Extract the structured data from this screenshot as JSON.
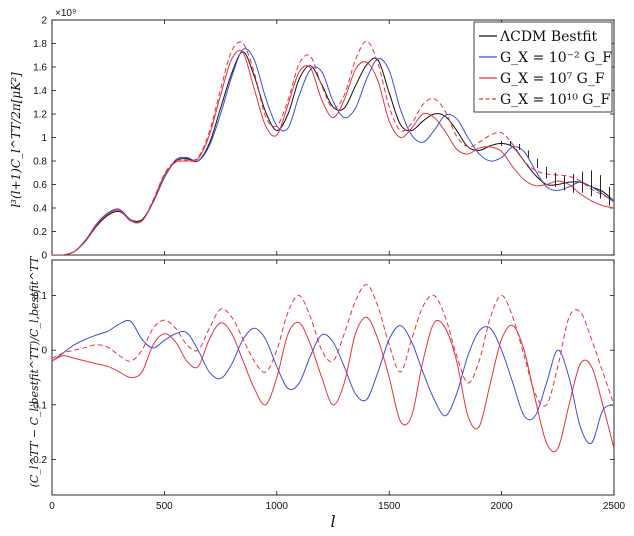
{
  "chart_data": [
    {
      "type": "line",
      "panel": "top",
      "ylabel": "l³(l+1)C_l^TT/2π[μK²]",
      "y_exponent_label": "×10⁹",
      "xlim": [
        0,
        2500
      ],
      "ylim": [
        0,
        2000000000.0
      ],
      "x_ticks": [
        0,
        500,
        1000,
        1500,
        2000,
        2500
      ],
      "y_ticks": [
        0,
        0.2,
        0.4,
        0.6,
        0.8,
        1,
        1.2,
        1.4,
        1.6,
        1.8,
        2
      ],
      "y_tick_labels": [
        "0",
        "0.2",
        "0.4",
        "0.6",
        "0.8",
        "1",
        "1.2",
        "1.4",
        "1.6",
        "1.8",
        "2"
      ],
      "legend_position": "top-right",
      "legend": [
        {
          "label": "ΛCDM Bestfit",
          "color": "#111111",
          "dash": "solid"
        },
        {
          "label": "G_X = 10⁻² G_F",
          "color": "#3a4fe0",
          "dash": "solid"
        },
        {
          "label": "G_X = 10⁷ G_F",
          "color": "#e8323c",
          "dash": "solid"
        },
        {
          "label": "G_X = 10¹⁰ G_F",
          "color": "#e8323c",
          "dash": "dashed"
        }
      ],
      "x": [
        0,
        50,
        100,
        150,
        200,
        250,
        300,
        350,
        400,
        450,
        500,
        550,
        600,
        650,
        700,
        750,
        800,
        850,
        900,
        950,
        1000,
        1050,
        1100,
        1150,
        1200,
        1250,
        1300,
        1350,
        1400,
        1450,
        1500,
        1550,
        1600,
        1650,
        1700,
        1750,
        1800,
        1850,
        1900,
        1950,
        2000,
        2050,
        2100,
        2150,
        2200,
        2250,
        2300,
        2350,
        2400,
        2450,
        2500
      ],
      "series": [
        {
          "key": "bestfit",
          "color": "#111111",
          "dash": "solid",
          "values": [
            0.0,
            0.0,
            0.03,
            0.12,
            0.25,
            0.34,
            0.37,
            0.3,
            0.3,
            0.45,
            0.66,
            0.8,
            0.82,
            0.8,
            0.95,
            1.25,
            1.55,
            1.73,
            1.52,
            1.22,
            1.06,
            1.2,
            1.5,
            1.61,
            1.45,
            1.26,
            1.25,
            1.44,
            1.62,
            1.66,
            1.38,
            1.11,
            1.06,
            1.14,
            1.2,
            1.18,
            1.06,
            0.92,
            0.89,
            0.93,
            0.95,
            0.92,
            0.8,
            0.68,
            0.6,
            0.6,
            0.62,
            0.62,
            0.58,
            0.54,
            0.46
          ]
        },
        {
          "key": "gx_1e-2",
          "color": "#3a4fe0",
          "dash": "solid",
          "values": [
            0.0,
            0.0,
            0.03,
            0.13,
            0.27,
            0.36,
            0.39,
            0.3,
            0.29,
            0.45,
            0.66,
            0.81,
            0.83,
            0.8,
            0.93,
            1.2,
            1.52,
            1.75,
            1.66,
            1.34,
            1.1,
            1.08,
            1.36,
            1.58,
            1.56,
            1.31,
            1.17,
            1.25,
            1.5,
            1.67,
            1.57,
            1.24,
            1.02,
            0.96,
            1.06,
            1.19,
            1.16,
            1.0,
            0.86,
            0.8,
            0.83,
            0.92,
            0.88,
            0.72,
            0.58,
            0.55,
            0.58,
            0.62,
            0.58,
            0.52,
            0.45
          ]
        },
        {
          "key": "gx_1e7",
          "color": "#e8323c",
          "dash": "solid",
          "values": [
            0.0,
            0.0,
            0.03,
            0.12,
            0.26,
            0.35,
            0.38,
            0.29,
            0.29,
            0.46,
            0.68,
            0.79,
            0.8,
            0.82,
            1.02,
            1.36,
            1.67,
            1.72,
            1.41,
            1.1,
            1.02,
            1.28,
            1.56,
            1.59,
            1.32,
            1.17,
            1.32,
            1.58,
            1.64,
            1.48,
            1.14,
            1.0,
            1.08,
            1.2,
            1.17,
            1.05,
            0.9,
            0.86,
            0.91,
            0.92,
            0.88,
            0.75,
            0.64,
            0.59,
            0.6,
            0.63,
            0.6,
            0.52,
            0.46,
            0.42,
            0.4
          ]
        },
        {
          "key": "gx_1e10",
          "color": "#e8323c",
          "dash": "dashed",
          "values": [
            0.0,
            0.0,
            0.03,
            0.12,
            0.26,
            0.35,
            0.38,
            0.29,
            0.29,
            0.47,
            0.69,
            0.8,
            0.81,
            0.83,
            1.05,
            1.41,
            1.74,
            1.8,
            1.55,
            1.18,
            1.1,
            1.32,
            1.63,
            1.69,
            1.44,
            1.25,
            1.36,
            1.66,
            1.82,
            1.63,
            1.26,
            1.06,
            1.12,
            1.28,
            1.33,
            1.22,
            1.01,
            0.92,
            0.96,
            1.02,
            1.04,
            0.94,
            0.8,
            0.72,
            0.69,
            0.68,
            0.67,
            0.63,
            0.56,
            0.51,
            0.46
          ]
        }
      ],
      "error_bars": {
        "x": [
          2000,
          2040,
          2080,
          2120,
          2160,
          2200,
          2240,
          2280,
          2320,
          2360,
          2400,
          2440,
          2480
        ],
        "y": [
          0.95,
          0.95,
          0.92,
          0.86,
          0.78,
          0.7,
          0.64,
          0.61,
          0.61,
          0.62,
          0.61,
          0.58,
          0.5
        ],
        "err": [
          0.02,
          0.02,
          0.025,
          0.03,
          0.04,
          0.05,
          0.06,
          0.06,
          0.08,
          0.09,
          0.11,
          0.1,
          0.08
        ],
        "color": "#111111"
      }
    },
    {
      "type": "line",
      "panel": "bottom",
      "xlabel": "l",
      "ylabel": "(C_l^TT − C_l,bestfit^TT)/C_l,bestfit^TT",
      "xlim": [
        0,
        2500
      ],
      "ylim": [
        -0.265,
        0.165
      ],
      "x_ticks": [
        0,
        500,
        1000,
        1500,
        2000,
        2500
      ],
      "y_ticks": [
        -0.2,
        -0.1,
        0,
        0.1
      ],
      "y_tick_labels": [
        "-0.2",
        "-0.1",
        "0",
        "0.1"
      ],
      "x": [
        0,
        50,
        100,
        150,
        200,
        250,
        300,
        350,
        400,
        450,
        500,
        550,
        600,
        650,
        700,
        750,
        800,
        850,
        900,
        950,
        1000,
        1050,
        1100,
        1150,
        1200,
        1250,
        1300,
        1350,
        1400,
        1450,
        1500,
        1550,
        1600,
        1650,
        1700,
        1750,
        1800,
        1850,
        1900,
        1950,
        2000,
        2050,
        2100,
        2150,
        2200,
        2250,
        2300,
        2350,
        2400,
        2450,
        2500
      ],
      "series": [
        {
          "key": "gx_1e-2",
          "color": "#3a4fe0",
          "dash": "solid",
          "values": [
            -0.02,
            -0.005,
            0.01,
            0.02,
            0.028,
            0.035,
            0.048,
            0.053,
            0.02,
            0.004,
            0.018,
            0.03,
            0.032,
            0.0,
            -0.04,
            -0.052,
            -0.025,
            0.02,
            0.04,
            0.02,
            -0.03,
            -0.07,
            -0.06,
            -0.01,
            0.028,
            0.015,
            -0.03,
            -0.08,
            -0.09,
            -0.04,
            0.02,
            0.045,
            0.015,
            -0.04,
            -0.09,
            -0.12,
            -0.08,
            -0.01,
            0.035,
            0.04,
            0.0,
            -0.06,
            -0.12,
            -0.12,
            -0.06,
            0.0,
            -0.05,
            -0.14,
            -0.17,
            -0.11,
            -0.1
          ]
        },
        {
          "key": "gx_1e7",
          "color": "#e8323c",
          "dash": "solid",
          "values": [
            -0.02,
            -0.01,
            -0.015,
            -0.02,
            -0.025,
            -0.03,
            -0.04,
            -0.05,
            -0.04,
            0.01,
            0.03,
            0.015,
            -0.02,
            -0.03,
            0.02,
            0.05,
            0.03,
            -0.02,
            -0.07,
            -0.1,
            -0.05,
            0.03,
            0.05,
            0.01,
            -0.05,
            -0.1,
            -0.06,
            0.03,
            0.06,
            0.02,
            -0.05,
            -0.13,
            -0.12,
            -0.02,
            0.05,
            0.04,
            -0.02,
            -0.12,
            -0.14,
            -0.06,
            0.02,
            0.045,
            0.0,
            -0.09,
            -0.17,
            -0.18,
            -0.1,
            -0.025,
            -0.03,
            -0.1,
            -0.18
          ]
        },
        {
          "key": "gx_1e10",
          "color": "#e8323c",
          "dash": "dashed",
          "values": [
            -0.015,
            -0.005,
            0.0,
            0.005,
            0.01,
            0.005,
            -0.01,
            -0.02,
            0.0,
            0.04,
            0.055,
            0.04,
            0.01,
            0.0,
            0.04,
            0.075,
            0.06,
            0.02,
            -0.02,
            -0.04,
            0.0,
            0.07,
            0.1,
            0.06,
            0.0,
            -0.02,
            0.03,
            0.09,
            0.12,
            0.08,
            0.01,
            -0.04,
            0.02,
            0.08,
            0.1,
            0.06,
            -0.01,
            -0.06,
            -0.02,
            0.06,
            0.1,
            0.06,
            -0.01,
            -0.08,
            -0.1,
            -0.03,
            0.06,
            0.07,
            0.02,
            -0.04,
            -0.1
          ]
        }
      ]
    }
  ]
}
